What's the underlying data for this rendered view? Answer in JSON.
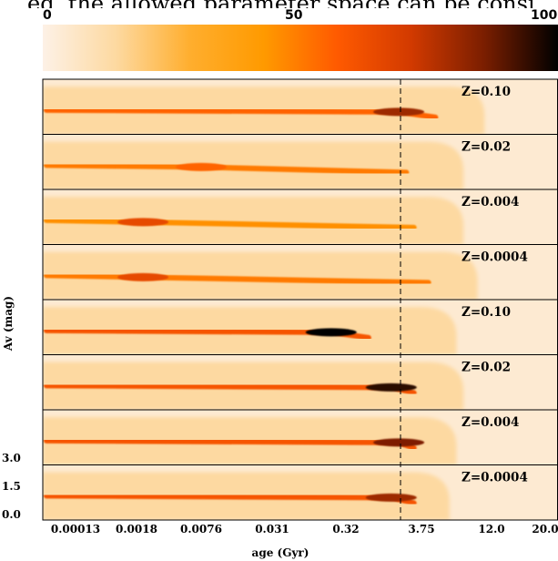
{
  "top_text": "ed, the allowed parameter space can be consi",
  "colorbar": {
    "labels": [
      "0",
      "50",
      "100"
    ],
    "min": 0,
    "max": 100,
    "colors": [
      "#fdf1e6",
      "#fdd9a0",
      "#ffae2e",
      "#ff9a00",
      "#ff5a00",
      "#d23a00",
      "#7a1e00",
      "#000000"
    ]
  },
  "chart_data": {
    "type": "heatmap",
    "xlabel": "age (Gyr)",
    "ylabel": "Av (mag)",
    "x_tick_labels": [
      "0.00013",
      "0.0018",
      "0.0076",
      "0.031",
      "0.32",
      "3.75",
      "12.0",
      "20.0"
    ],
    "y_tick_labels": [
      "0.0",
      "1.5",
      "3.0"
    ],
    "ylim": [
      0,
      3.0
    ],
    "vertical_marker_age_gyr": 2.5,
    "panels": [
      {
        "label": "Z=0.10",
        "core_end_rank": 5.2,
        "peak_rank": 4.7,
        "peak_intensity": 80,
        "band_intensity": 55,
        "fade_end_rank": 5.9
      },
      {
        "label": "Z=0.02",
        "core_end_rank": 4.8,
        "peak_rank": 2.0,
        "peak_intensity": 55,
        "band_intensity": 50,
        "fade_end_rank": 5.6
      },
      {
        "label": "Z=0.004",
        "core_end_rank": 4.9,
        "peak_rank": 1.1,
        "peak_intensity": 65,
        "band_intensity": 45,
        "fade_end_rank": 5.6
      },
      {
        "label": "Z=0.0004",
        "core_end_rank": 5.1,
        "peak_rank": 1.1,
        "peak_intensity": 65,
        "band_intensity": 50,
        "fade_end_rank": 5.8
      },
      {
        "label": "Z=0.10",
        "core_end_rank": 4.3,
        "peak_rank": 3.8,
        "peak_intensity": 100,
        "band_intensity": 60,
        "fade_end_rank": 5.5
      },
      {
        "label": "Z=0.02",
        "core_end_rank": 4.9,
        "peak_rank": 4.6,
        "peak_intensity": 95,
        "band_intensity": 60,
        "fade_end_rank": 5.6
      },
      {
        "label": "Z=0.004",
        "core_end_rank": 4.9,
        "peak_rank": 4.7,
        "peak_intensity": 85,
        "band_intensity": 60,
        "fade_end_rank": 5.5
      },
      {
        "label": "Z=0.0004",
        "core_end_rank": 4.9,
        "peak_rank": 4.6,
        "peak_intensity": 80,
        "band_intensity": 60,
        "fade_end_rank": 5.4
      }
    ]
  }
}
